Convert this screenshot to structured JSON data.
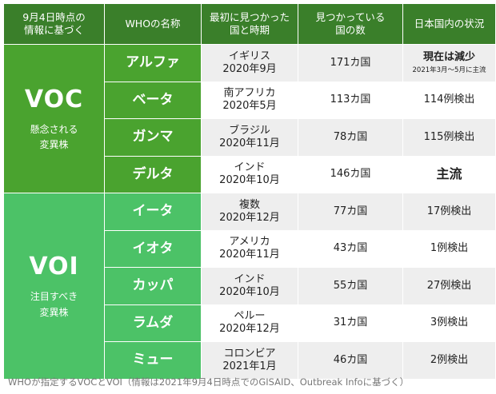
{
  "headers": {
    "col1": "9月4日時点の\n情報に基づく",
    "col2": "WHOの名称",
    "col3": "最初に見つかった\n国と時期",
    "col4": "見つかっている\n国の数",
    "col5": "日本国内の状況"
  },
  "groups": {
    "voc": {
      "code": "VOC",
      "sub": "懸念される\n変異株"
    },
    "voi": {
      "code": "VOI",
      "sub": "注目すべき\n変異株"
    }
  },
  "rows": [
    {
      "name": "アルファ",
      "origin_country": "イギリス",
      "origin_date": "2020年9月",
      "countries": "171カ国",
      "japan": "現在は減少",
      "japan_note": "2021年3月〜5月に主流"
    },
    {
      "name": "ベータ",
      "origin_country": "南アフリカ",
      "origin_date": "2020年5月",
      "countries": "113カ国",
      "japan": "114例検出"
    },
    {
      "name": "ガンマ",
      "origin_country": "ブラジル",
      "origin_date": "2020年11月",
      "countries": "78カ国",
      "japan": "115例検出"
    },
    {
      "name": "デルタ",
      "origin_country": "インド",
      "origin_date": "2020年10月",
      "countries": "146カ国",
      "japan": "主流"
    },
    {
      "name": "イータ",
      "origin_country": "複数",
      "origin_date": "2020年12月",
      "countries": "77カ国",
      "japan": "17例検出"
    },
    {
      "name": "イオタ",
      "origin_country": "アメリカ",
      "origin_date": "2020年11月",
      "countries": "43カ国",
      "japan": "1例検出"
    },
    {
      "name": "カッパ",
      "origin_country": "インド",
      "origin_date": "2020年10月",
      "countries": "55カ国",
      "japan": "27例検出"
    },
    {
      "name": "ラムダ",
      "origin_country": "ペルー",
      "origin_date": "2020年12月",
      "countries": "31カ国",
      "japan": "3例検出"
    },
    {
      "name": "ミュー",
      "origin_country": "コロンビア",
      "origin_date": "2021年1月",
      "countries": "46カ国",
      "japan": "2例検出"
    }
  ],
  "caption": "WHOが指定するVOCとVOI（情報は2021年9月4日時点でのGISAID、Outbreak Infoに基づく）"
}
